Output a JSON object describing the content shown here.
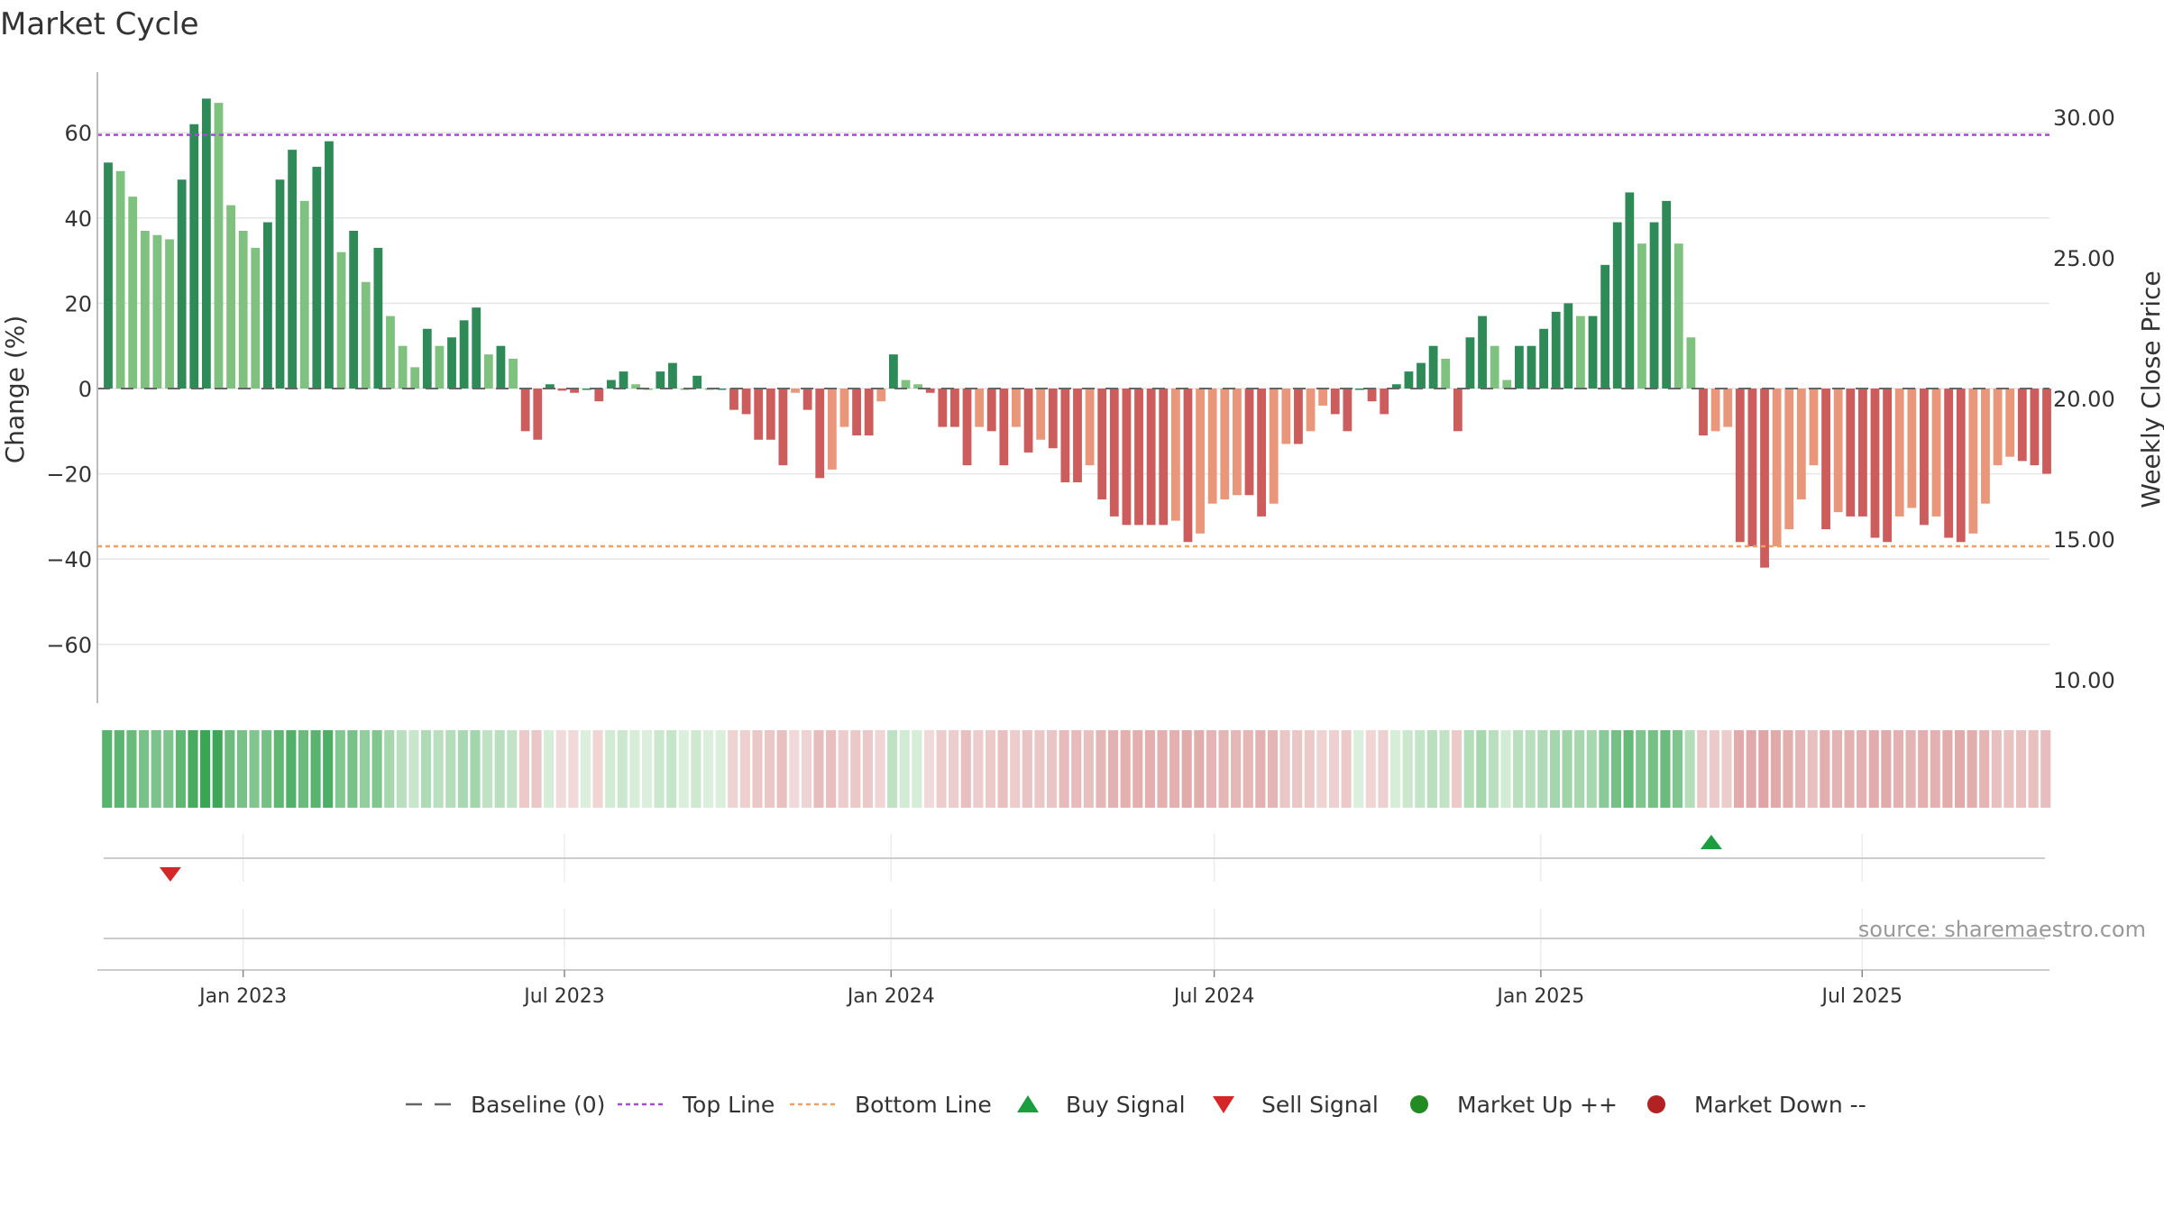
{
  "chart_data": {
    "type": "bar",
    "title": "Market Cycle",
    "ylabel": "Change (%)",
    "y2label": "Weekly Close Price",
    "ylim": [
      -74,
      74
    ],
    "y2lim": [
      9,
      31
    ],
    "yticks": [
      60,
      40,
      20,
      0,
      -20,
      -40,
      -60
    ],
    "ytick_labels": [
      "60",
      "40",
      "20",
      "0",
      "−20",
      "−40",
      "−60"
    ],
    "y2ticks": [
      30,
      25,
      20,
      15,
      10
    ],
    "y2tick_labels": [
      "30.00",
      "25.00",
      "20.00",
      "15.00",
      "10.00"
    ],
    "x_start": "2022-10-17",
    "x_end": "2025-10-13",
    "xticks": [
      {
        "date": "2023-01-01",
        "label": "Jan 2023"
      },
      {
        "date": "2023-07-01",
        "label": "Jul 2023"
      },
      {
        "date": "2024-01-01",
        "label": "Jan 2024"
      },
      {
        "date": "2024-07-01",
        "label": "Jul 2024"
      },
      {
        "date": "2025-01-01",
        "label": "Jan 2025"
      },
      {
        "date": "2025-07-01",
        "label": "Jul 2025"
      }
    ],
    "top_line": 59.5,
    "bottom_line": -37,
    "grid": true,
    "legend_position": "bottom",
    "colors": {
      "up_strong": "#2e8b57",
      "up_weak": "#7fc17f",
      "down_strong": "#cd5c5c",
      "down_weak": "#e9967a",
      "top_line": "#a64ad6",
      "bottom_line": "#f0a060",
      "buy": "#1a9e3f",
      "sell": "#d62728",
      "market_up": "#228b22",
      "market_down": "#b22222",
      "baseline": "#666666"
    },
    "values": [
      53,
      51,
      45,
      37,
      36,
      35,
      49,
      62,
      68,
      67,
      43,
      37,
      33,
      39,
      49,
      56,
      44,
      52,
      58,
      32,
      37,
      25,
      33,
      17,
      10,
      5,
      14,
      10,
      12,
      16,
      19,
      8,
      10,
      7,
      -10,
      -12,
      1,
      -0.5,
      -1,
      0,
      -3,
      2,
      4,
      1,
      0,
      4,
      6,
      0,
      3,
      0,
      0,
      -5,
      -6,
      -12,
      -12,
      -18,
      -1,
      -5,
      -21,
      -19,
      -9,
      -11,
      -11,
      -3,
      8,
      2,
      1,
      -1,
      -9,
      -9,
      -18,
      -9,
      -10,
      -18,
      -9,
      -15,
      -12,
      -14,
      -22,
      -22,
      -18,
      -26,
      -30,
      -32,
      -32,
      -32,
      -32,
      -31,
      -36,
      -34,
      -27,
      -26,
      -25,
      -25,
      -30,
      -27,
      -13,
      -13,
      -10,
      -4,
      -6,
      -10,
      0,
      -3,
      -6,
      1,
      4,
      6,
      10,
      7,
      -10,
      12,
      17,
      10,
      2,
      10,
      10,
      14,
      18,
      20,
      17,
      17,
      29,
      39,
      46,
      34,
      39,
      44,
      34,
      12,
      -11,
      -10,
      -9,
      -36,
      -37,
      -42,
      -37,
      -33,
      -26,
      -18,
      -33,
      -29,
      -30,
      -30,
      -35,
      -36,
      -30,
      -28,
      -32,
      -30,
      -35,
      -36,
      -34,
      -27,
      -18,
      -16,
      -17,
      -18,
      -20
    ],
    "buy_signals": [
      "2025-04-07"
    ],
    "sell_signals": [
      "2022-11-21"
    ],
    "source": "source: sharemaestro.com",
    "legend": [
      {
        "key": "baseline",
        "label": "Baseline (0)"
      },
      {
        "key": "top",
        "label": "Top Line"
      },
      {
        "key": "bottom",
        "label": "Bottom Line"
      },
      {
        "key": "buy",
        "label": "Buy Signal"
      },
      {
        "key": "sell",
        "label": "Sell Signal"
      },
      {
        "key": "mup",
        "label": "Market Up ++"
      },
      {
        "key": "mdown",
        "label": "Market Down --"
      }
    ]
  }
}
